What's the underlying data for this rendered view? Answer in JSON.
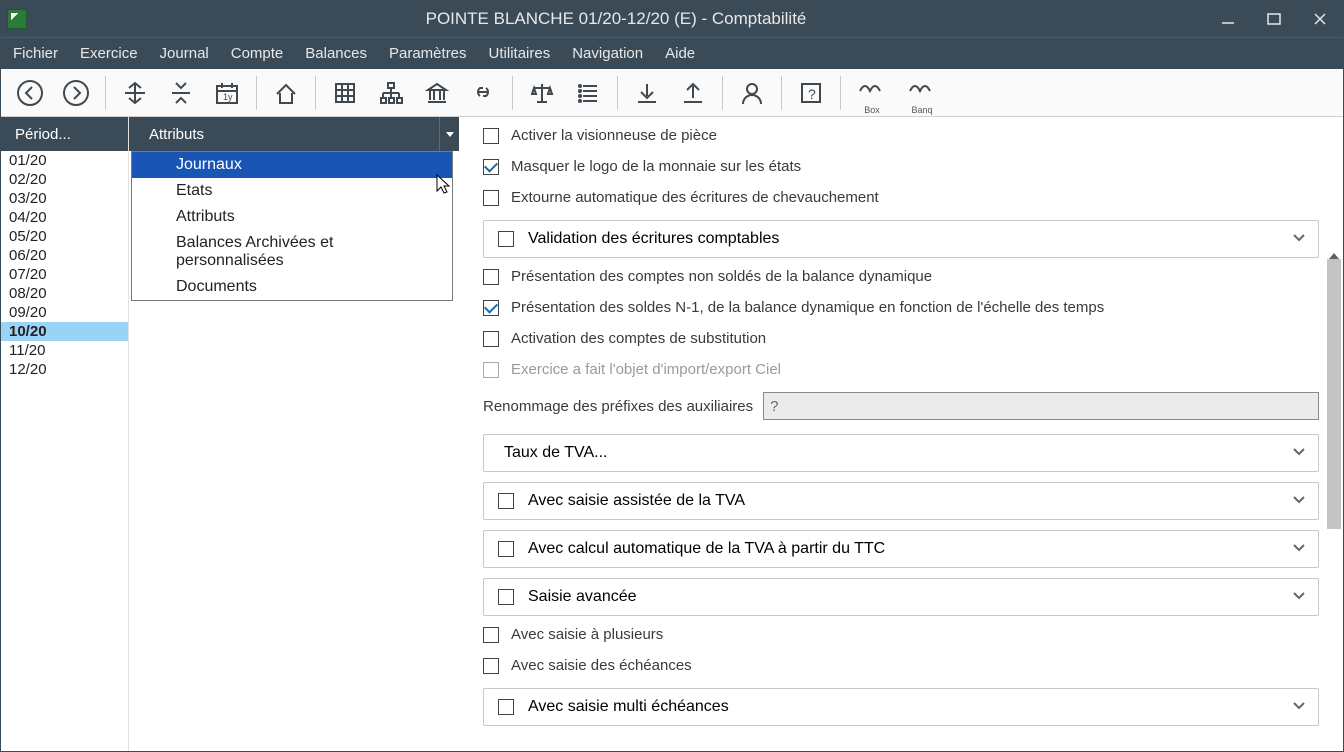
{
  "window": {
    "title": "POINTE BLANCHE 01/20-12/20 (E) - Comptabilité"
  },
  "menu": {
    "items": [
      "Fichier",
      "Exercice",
      "Journal",
      "Compte",
      "Balances",
      "Paramètres",
      "Utilitaires",
      "Navigation",
      "Aide"
    ]
  },
  "toolbar": {
    "adn_box": "Box",
    "adn_banq": "Banq"
  },
  "periods": {
    "header": "Périod...",
    "items": [
      "01/20",
      "02/20",
      "03/20",
      "04/20",
      "05/20",
      "06/20",
      "07/20",
      "08/20",
      "09/20",
      "10/20",
      "11/20",
      "12/20"
    ],
    "selected": "10/20"
  },
  "attributes": {
    "header": "Attributs",
    "dropdown": [
      "Journaux",
      "Etats",
      "Attributs",
      "Balances Archivées et personnalisées",
      "Documents"
    ],
    "hovered": "Journaux"
  },
  "settings": {
    "activer_visionneuse": {
      "label": "Activer la visionneuse de pièce",
      "checked": false
    },
    "masquer_logo": {
      "label": "Masquer le logo de la monnaie sur les états",
      "checked": true
    },
    "extourne_auto": {
      "label": "Extourne automatique des écritures de chevauchement",
      "checked": false
    },
    "validation_ecritures": {
      "label": "Validation des écritures comptables",
      "checked": false
    },
    "presentation_non_soldes": {
      "label": "Présentation des comptes non soldés de la balance dynamique",
      "checked": false
    },
    "presentation_n1": {
      "label": "Présentation des soldes N-1, de la balance dynamique en fonction de l'échelle des temps",
      "checked": true
    },
    "activation_substitution": {
      "label": "Activation des comptes de substitution",
      "checked": false
    },
    "exercice_import": {
      "label": "Exercice a fait l'objet d'import/export Ciel",
      "checked": false,
      "disabled": true
    },
    "renommage_label": "Renommage des préfixes des auxiliaires",
    "renommage_value": "?",
    "taux_tva": {
      "label": "Taux de TVA..."
    },
    "saisie_assistee": {
      "label": "Avec saisie assistée de la TVA",
      "checked": false
    },
    "calcul_auto": {
      "label": "Avec calcul automatique de la TVA à partir du TTC",
      "checked": false
    },
    "saisie_avancee": {
      "label": "Saisie avancée",
      "checked": false
    },
    "saisie_plusieurs": {
      "label": "Avec saisie à plusieurs",
      "checked": false
    },
    "saisie_echeances": {
      "label": "Avec saisie des échéances",
      "checked": false
    },
    "saisie_multi": {
      "label": "Avec saisie multi échéances",
      "checked": false
    }
  },
  "colors": {
    "titlebar": "#3a4a57",
    "selected_period": "#9bd3f7",
    "dropdown_hover": "#1955b5"
  }
}
